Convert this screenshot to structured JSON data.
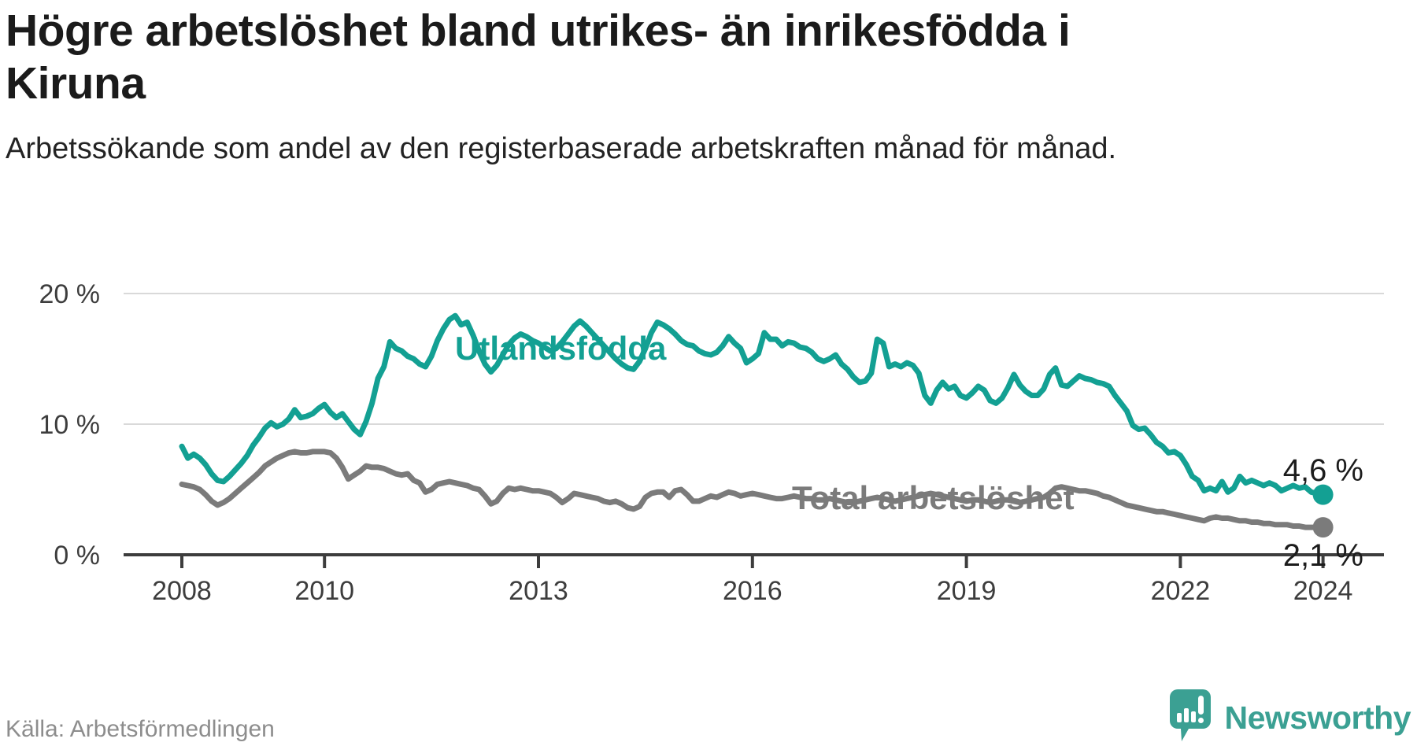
{
  "header": {
    "title_lines": [
      "Högre arbetslöshet bland utrikes- än inrikesfödda i",
      "Kiruna"
    ],
    "subtitle": "Arbetssökande som andel av den registerbaserade arbetskraften månad för månad."
  },
  "footer": {
    "source": "Källa: Arbetsförmedlingen",
    "brand": "Newsworthy"
  },
  "colors": {
    "accent_teal": "#13a093",
    "line_gray": "#7b7b7b",
    "logo_teal": "#3ba093",
    "grid": "#d9d9d9",
    "axis": "#3d3d3d",
    "title_text": "#1b1b1b",
    "source_text": "#8d8d8d"
  },
  "chart_data": {
    "type": "line",
    "unit": "%",
    "x_start_year": 2008,
    "points_per_year": 12,
    "x_end_label_year": 2024,
    "x_ticks": [
      2008,
      2010,
      2013,
      2016,
      2019,
      2022,
      2024
    ],
    "y_ticks": [
      0,
      10,
      20
    ],
    "y_tick_suffix": " %",
    "ylim": [
      0,
      21.5
    ],
    "grid": true,
    "legend_position": "inline-labels",
    "series": [
      {
        "name": "Utlandsfödda",
        "color": "#13a093",
        "end_value": 4.6,
        "end_label": "4,6 %",
        "values": [
          8.3,
          7.4,
          7.7,
          7.4,
          6.9,
          6.2,
          5.7,
          5.6,
          6.0,
          6.5,
          7.0,
          7.6,
          8.4,
          9.0,
          9.7,
          10.1,
          9.8,
          10.0,
          10.4,
          11.1,
          10.5,
          10.6,
          10.8,
          11.2,
          11.5,
          10.9,
          10.5,
          10.8,
          10.2,
          9.6,
          9.2,
          10.2,
          11.6,
          13.5,
          14.4,
          16.3,
          15.8,
          15.6,
          15.2,
          15.0,
          14.6,
          14.4,
          15.2,
          16.4,
          17.3,
          18.0,
          18.3,
          17.6,
          17.8,
          16.8,
          15.6,
          14.6,
          14.0,
          14.5,
          15.3,
          16.1,
          16.6,
          16.9,
          16.7,
          16.4,
          16.2,
          15.9,
          15.6,
          15.8,
          16.3,
          16.9,
          17.5,
          17.9,
          17.5,
          17.0,
          16.5,
          16.0,
          15.5,
          15.0,
          14.6,
          14.3,
          14.2,
          14.8,
          15.8,
          17.0,
          17.8,
          17.6,
          17.3,
          16.9,
          16.4,
          16.1,
          16.0,
          15.6,
          15.4,
          15.3,
          15.5,
          16.0,
          16.7,
          16.2,
          15.8,
          14.7,
          15.0,
          15.4,
          17.0,
          16.5,
          16.5,
          16.0,
          16.3,
          16.2,
          15.9,
          15.8,
          15.5,
          15.0,
          14.8,
          15.0,
          15.3,
          14.6,
          14.2,
          13.6,
          13.2,
          13.3,
          13.9,
          16.5,
          16.2,
          14.4,
          14.6,
          14.4,
          14.7,
          14.5,
          13.9,
          12.2,
          11.6,
          12.6,
          13.2,
          12.7,
          12.9,
          12.2,
          12.0,
          12.4,
          12.9,
          12.6,
          11.8,
          11.6,
          12.0,
          12.8,
          13.8,
          13.0,
          12.5,
          12.2,
          12.2,
          12.7,
          13.8,
          14.3,
          13.0,
          12.9,
          13.3,
          13.7,
          13.5,
          13.4,
          13.2,
          13.1,
          12.9,
          12.2,
          11.6,
          11.0,
          9.9,
          9.6,
          9.7,
          9.2,
          8.6,
          8.3,
          7.8,
          7.9,
          7.6,
          6.9,
          6.0,
          5.7,
          4.9,
          5.1,
          4.9,
          5.6,
          4.8,
          5.1,
          6.0,
          5.5,
          5.7,
          5.5,
          5.3,
          5.5,
          5.3,
          4.9,
          5.1,
          5.3,
          5.1,
          5.2,
          4.8,
          4.7,
          4.6
        ]
      },
      {
        "name": "Total arbetslöshet",
        "color": "#7b7b7b",
        "end_value": 2.1,
        "end_label": "2,1 %",
        "values": [
          5.4,
          5.3,
          5.2,
          5.0,
          4.6,
          4.1,
          3.8,
          4.0,
          4.3,
          4.7,
          5.1,
          5.5,
          5.9,
          6.3,
          6.8,
          7.1,
          7.4,
          7.6,
          7.8,
          7.9,
          7.8,
          7.8,
          7.9,
          7.9,
          7.9,
          7.8,
          7.4,
          6.7,
          5.8,
          6.1,
          6.4,
          6.8,
          6.7,
          6.7,
          6.6,
          6.4,
          6.2,
          6.1,
          6.2,
          5.7,
          5.5,
          4.8,
          5.0,
          5.4,
          5.5,
          5.6,
          5.5,
          5.4,
          5.3,
          5.1,
          5.0,
          4.5,
          3.9,
          4.1,
          4.7,
          5.1,
          5.0,
          5.1,
          5.0,
          4.9,
          4.9,
          4.8,
          4.7,
          4.4,
          4.0,
          4.3,
          4.7,
          4.6,
          4.5,
          4.4,
          4.3,
          4.1,
          4.0,
          4.1,
          3.9,
          3.6,
          3.5,
          3.7,
          4.4,
          4.7,
          4.8,
          4.8,
          4.4,
          4.9,
          5.0,
          4.6,
          4.1,
          4.1,
          4.3,
          4.5,
          4.4,
          4.6,
          4.8,
          4.7,
          4.5,
          4.6,
          4.7,
          4.6,
          4.5,
          4.4,
          4.3,
          4.3,
          4.4,
          4.5,
          4.4,
          4.3,
          4.3,
          4.2,
          4.2,
          4.3,
          4.2,
          4.1,
          4.0,
          4.0,
          4.1,
          4.2,
          4.3,
          4.4,
          4.3,
          4.2,
          4.1,
          4.2,
          4.3,
          4.4,
          4.5,
          4.6,
          4.7,
          4.6,
          4.5,
          4.4,
          4.3,
          4.2,
          4.1,
          4.2,
          4.2,
          4.1,
          4.0,
          4.1,
          4.2,
          4.2,
          4.1,
          4.0,
          4.1,
          4.2,
          4.3,
          4.4,
          4.7,
          5.1,
          5.2,
          5.1,
          5.0,
          4.9,
          4.9,
          4.8,
          4.7,
          4.5,
          4.4,
          4.2,
          4.0,
          3.8,
          3.7,
          3.6,
          3.5,
          3.4,
          3.3,
          3.3,
          3.2,
          3.1,
          3.0,
          2.9,
          2.8,
          2.7,
          2.6,
          2.8,
          2.9,
          2.8,
          2.8,
          2.7,
          2.6,
          2.6,
          2.5,
          2.5,
          2.4,
          2.4,
          2.3,
          2.3,
          2.3,
          2.2,
          2.2,
          2.1,
          2.1,
          2.1,
          2.1
        ]
      }
    ]
  }
}
